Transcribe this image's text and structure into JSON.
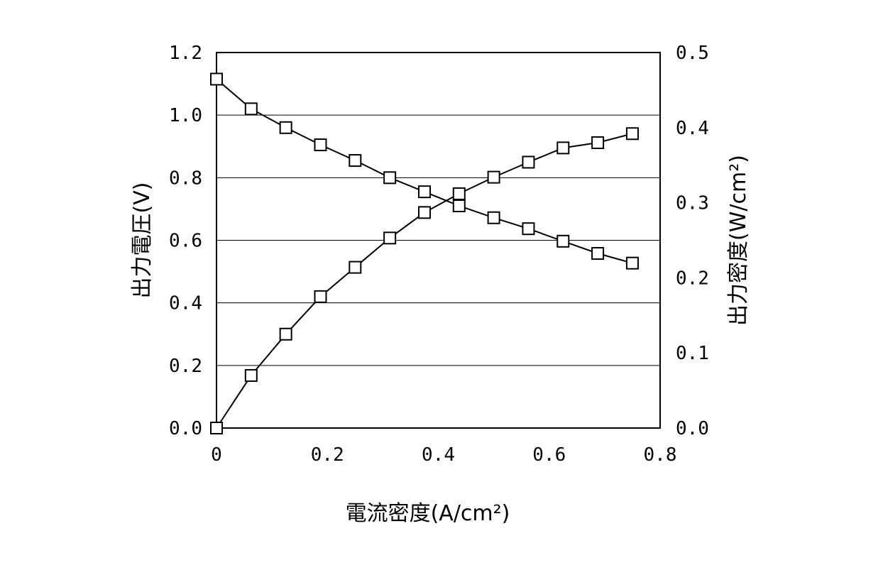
{
  "chart_data": {
    "type": "line",
    "xlabel": "電流密度(A/cm²)",
    "ylabel_left": "出力電圧(V)",
    "ylabel_right": "出力密度(W/cm²)",
    "xlim": [
      0,
      0.8
    ],
    "ylim_left": [
      0,
      1.2
    ],
    "ylim_right": [
      0,
      0.5
    ],
    "x_ticks": [
      "0",
      "0.2",
      "0.4",
      "0.6",
      "0.8"
    ],
    "y_left_ticks": [
      "0.0",
      "0.2",
      "0.4",
      "0.6",
      "0.8",
      "1.0",
      "1.2"
    ],
    "y_right_ticks": [
      "0.0",
      "0.1",
      "0.2",
      "0.3",
      "0.4",
      "0.5"
    ],
    "grid": "horizontal",
    "marker": "open-square",
    "series": [
      {
        "axis": "left",
        "x": [
          0,
          0.0625,
          0.125,
          0.1875,
          0.25,
          0.3125,
          0.375,
          0.4375,
          0.5,
          0.5625,
          0.625,
          0.6875,
          0.75
        ],
        "y": [
          1.115,
          1.02,
          0.96,
          0.905,
          0.855,
          0.8,
          0.755,
          0.71,
          0.672,
          0.637,
          0.597,
          0.558,
          0.527
        ]
      },
      {
        "axis": "right",
        "x": [
          0,
          0.0625,
          0.125,
          0.1875,
          0.25,
          0.3125,
          0.375,
          0.4375,
          0.5,
          0.5625,
          0.625,
          0.6875,
          0.75
        ],
        "y": [
          0.0,
          0.07,
          0.125,
          0.175,
          0.214,
          0.253,
          0.287,
          0.312,
          0.334,
          0.354,
          0.373,
          0.38,
          0.392
        ]
      }
    ]
  }
}
